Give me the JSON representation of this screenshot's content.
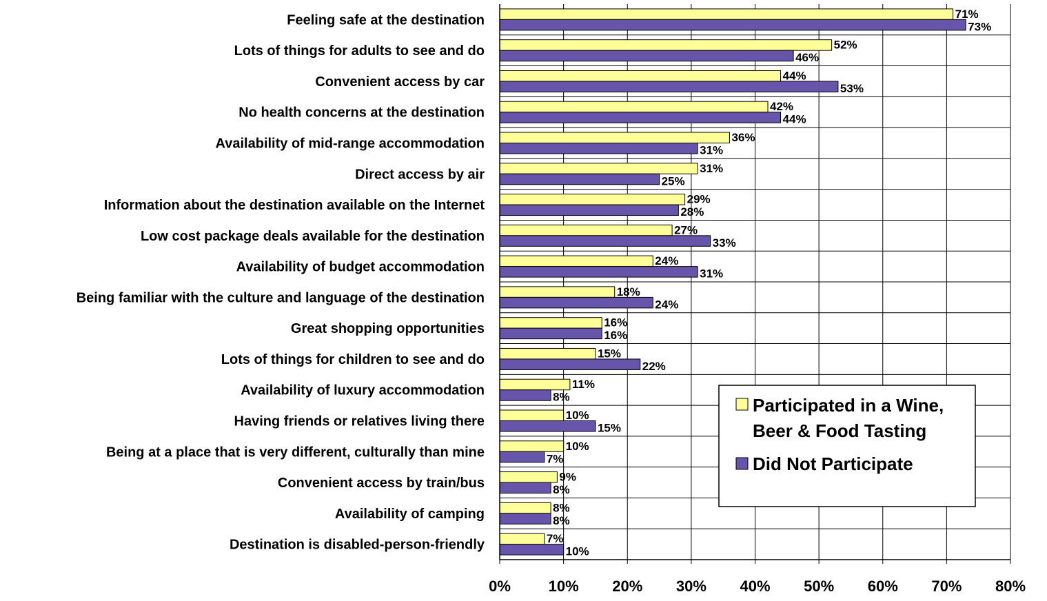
{
  "chart_data": {
    "type": "bar",
    "orientation": "horizontal",
    "categories": [
      "Feeling safe at the destination",
      "Lots of things for adults to see and do",
      "Convenient access by car",
      "No health concerns at the destination",
      "Availability of mid-range accommodation",
      "Direct access by air",
      "Information about the destination available on the Internet",
      "Low cost package deals available for the destination",
      "Availability of budget accommodation",
      "Being familiar with the culture and language of the destination",
      "Great shopping opportunities",
      "Lots of things for children to see and do",
      "Availability of luxury accommodation",
      "Having friends or relatives living there",
      "Being at a place that is very different, culturally than mine",
      "Convenient access by train/bus",
      "Availability of camping",
      "Destination is disabled-person-friendly"
    ],
    "series": [
      {
        "name": "Participated in a Wine,\nBeer & Food Tasting",
        "legend_lines": [
          "Participated in a Wine,",
          "Beer & Food Tasting"
        ],
        "color": "#ffff99",
        "values": [
          71,
          52,
          44,
          42,
          36,
          31,
          29,
          27,
          24,
          18,
          16,
          15,
          11,
          10,
          10,
          9,
          8,
          7
        ],
        "labels": [
          "71%",
          "52%",
          "44%",
          "42%",
          "36%",
          "31%",
          "29%",
          "27%",
          "24%",
          "18%",
          "16%",
          "15%",
          "11%",
          "10%",
          "10%",
          "9%",
          "8%",
          "7%"
        ]
      },
      {
        "name": "Did Not Participate",
        "legend_lines": [
          "Did Not Participate"
        ],
        "color": "#6655aa",
        "values": [
          73,
          46,
          53,
          44,
          31,
          25,
          28,
          33,
          31,
          24,
          16,
          22,
          8,
          15,
          7,
          8,
          8,
          10
        ],
        "labels": [
          "73%",
          "46%",
          "53%",
          "44%",
          "31%",
          "25%",
          "28%",
          "33%",
          "31%",
          "24%",
          "16%",
          "22%",
          "8%",
          "15%",
          "7%",
          "8%",
          "8%",
          "10%"
        ]
      }
    ],
    "xlim": [
      0,
      80
    ],
    "x_ticks": [
      0,
      10,
      20,
      30,
      40,
      50,
      60,
      70,
      80
    ],
    "x_tick_labels": [
      "0%",
      "10%",
      "20%",
      "30%",
      "40%",
      "50%",
      "60%",
      "70%",
      "80%"
    ],
    "grid": true,
    "legend_position": "bottom-right",
    "title": "",
    "xlabel": "",
    "ylabel": ""
  }
}
